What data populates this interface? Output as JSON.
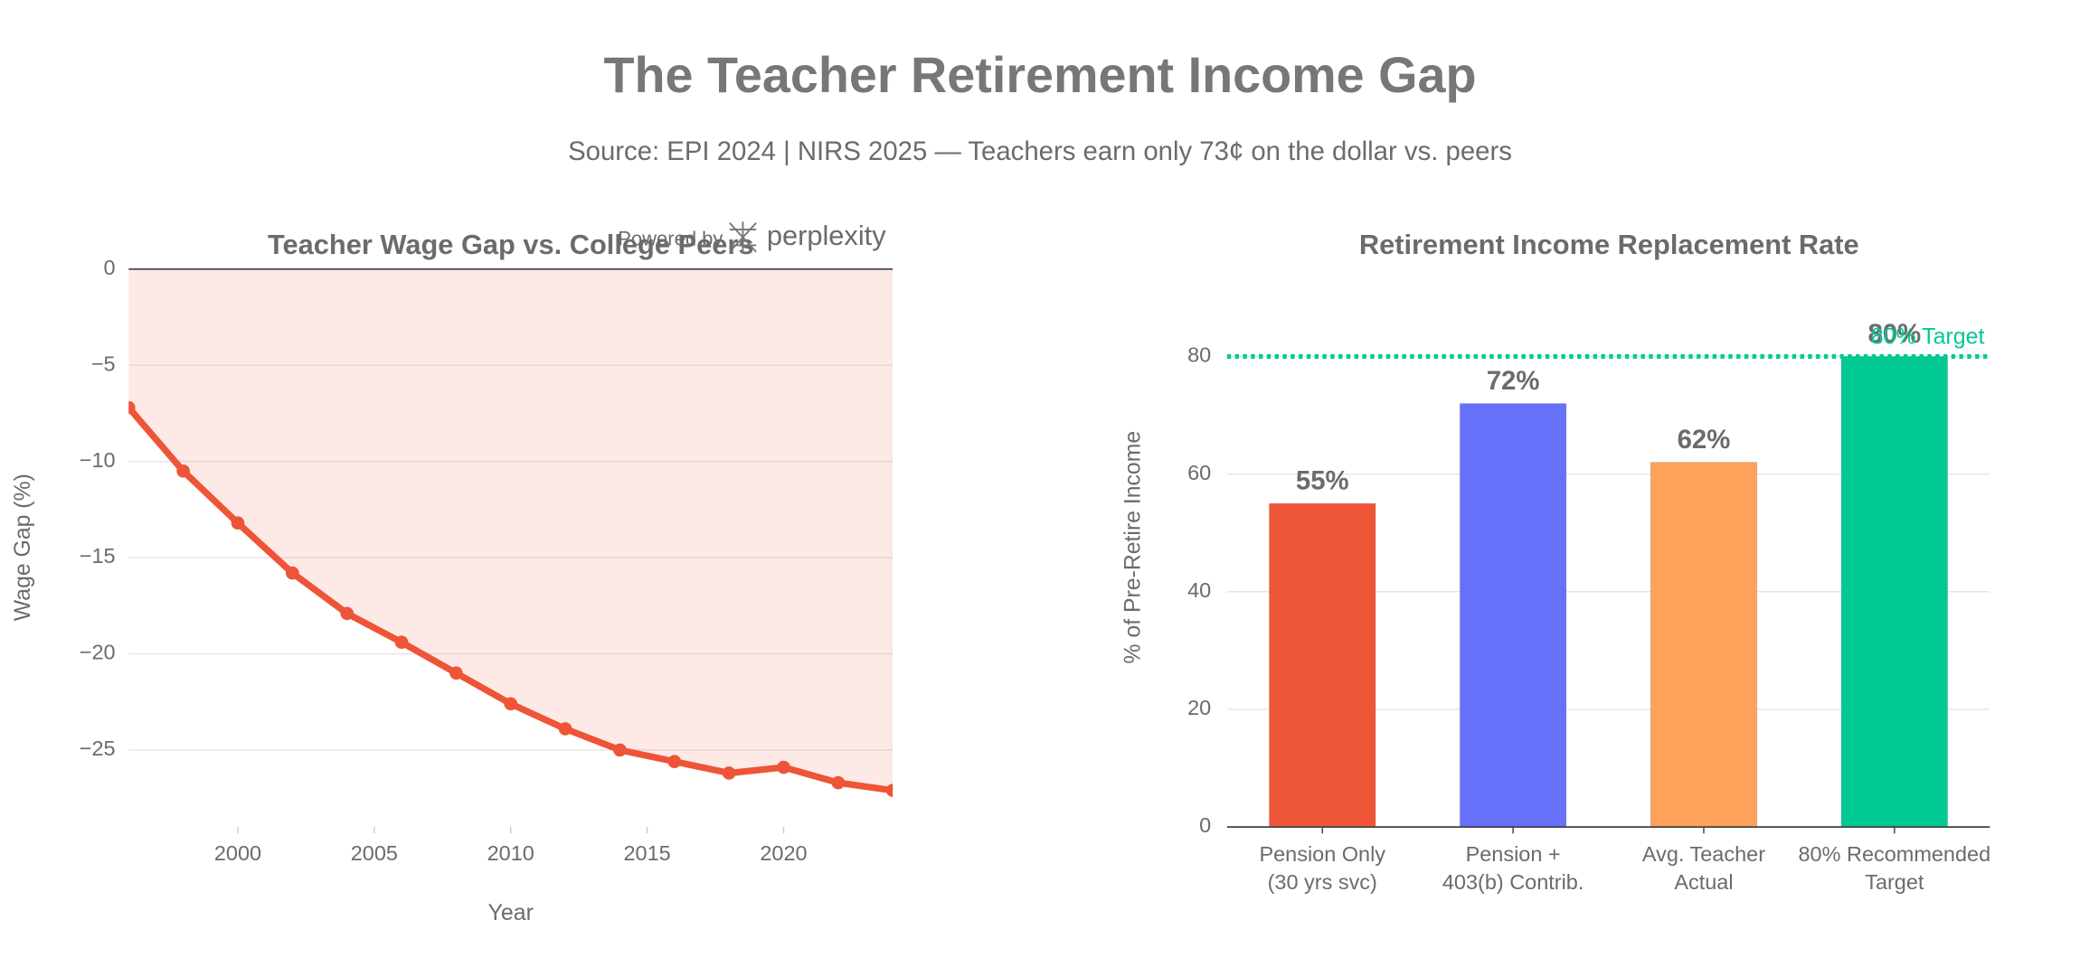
{
  "title": "The Teacher Retirement Income Gap",
  "subtitle": "Source: EPI 2024 | NIRS 2025 — Teachers earn only 73¢ on the dollar vs. peers",
  "watermark": {
    "prefix": "Powered by",
    "brand": "perplexity"
  },
  "chart_data": [
    {
      "type": "line",
      "title": "Teacher Wage Gap vs. College Peers",
      "x_label": "Year",
      "y_label": "Wage Gap (%)",
      "x": [
        1996,
        1998,
        2000,
        2002,
        2004,
        2006,
        2008,
        2010,
        2012,
        2014,
        2016,
        2018,
        2020,
        2022,
        2024
      ],
      "values": [
        -7.2,
        -10.5,
        -13.2,
        -15.8,
        -17.9,
        -19.4,
        -21.0,
        -22.6,
        -23.9,
        -25.0,
        -25.6,
        -26.2,
        -25.9,
        -26.7,
        -27.1
      ],
      "color": "#ee5437",
      "fill": "tozero",
      "fill_color": "rgba(240,87,58,0.13)",
      "xlim": [
        1996,
        2024
      ],
      "xticks": [
        2000,
        2005,
        2010,
        2015,
        2020
      ],
      "ylim": [
        -29,
        0
      ],
      "yticks": [
        0,
        {
          "value": -5,
          "label": "−5"
        },
        {
          "value": -10,
          "label": "−10"
        },
        {
          "value": -15,
          "label": "−15"
        },
        {
          "value": -20,
          "label": "−20"
        },
        {
          "value": -25,
          "label": "−25"
        }
      ],
      "grid": true
    },
    {
      "type": "bar",
      "title": "Retirement Income Replacement Rate",
      "y_label": "% of Pre-Retire Income",
      "categories": [
        "Pension Only\n(30 yrs svc)",
        "Pension +\n403(b) Contrib.",
        "Avg. Teacher\nActual",
        "80% Recommended\nTarget"
      ],
      "values": [
        55,
        72,
        62,
        80
      ],
      "value_labels": [
        "55%",
        "72%",
        "62%",
        "80%"
      ],
      "colors": [
        "#ef5638",
        "#6670f8",
        "#fea15a",
        "#00c994"
      ],
      "ylim": [
        0,
        85
      ],
      "yticks": [
        0,
        20,
        40,
        60,
        80
      ],
      "grid": true,
      "target": {
        "value": 80,
        "label": "80% Target",
        "color": "#00c994"
      }
    }
  ]
}
